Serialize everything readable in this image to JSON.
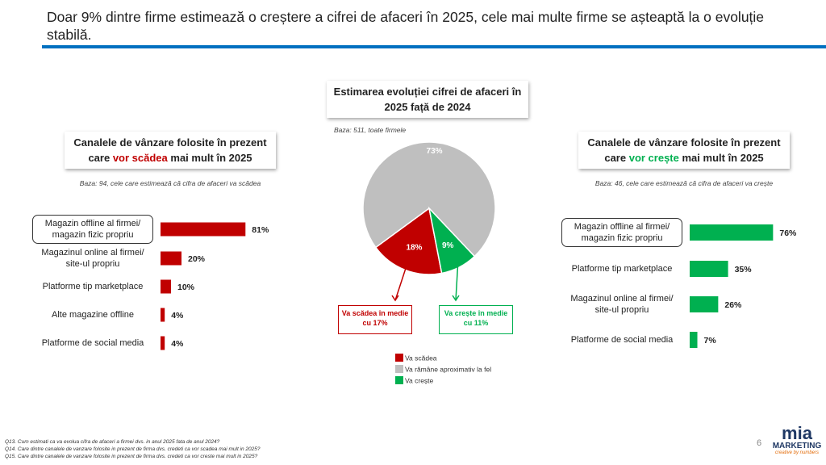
{
  "slide": {
    "title": "Doar 9% dintre firme estimează o creștere a cifrei de afaceri în 2025, cele mai multe firme se așteaptă la o evoluție stabilă.",
    "footnotes": [
      "Q13. Cum estimati ca va evolua cifra de afaceri a firmei dvs. in anul 2025 fata de anul 2024?",
      "Q14. Care dintre canalele de vanzare folosite in prezent de firma dvs. credeti ca vor scadea mai mult in 2025?",
      "Q15. Care dintre canalele de vanzare folosite in prezent de firma dvs. credeti ca vor creste mai mult in 2025?"
    ],
    "page_number": "6",
    "logo": {
      "name": "mia",
      "word": "MARKETING",
      "tagline": "creative by numbers"
    }
  },
  "chart_data": [
    {
      "type": "bar",
      "title": [
        "Canalele de vânzare folosite în prezent care",
        "vor scădea",
        "mai mult în 2025"
      ],
      "base": "Baza: 94, cele care estimează că cifra de afaceri va scădea",
      "categories": [
        "Magazin offline al firmei/ magazin fizic propriu",
        "Magazinul online al firmei/ site-ul propriu",
        "Platforme tip marketplace",
        "Alte magazine offline",
        "Platforme de social media"
      ],
      "values": [
        81,
        20,
        10,
        4,
        4
      ],
      "value_labels": [
        "81%",
        "20%",
        "10%",
        "4%",
        "4%"
      ],
      "color": "#c00000"
    },
    {
      "type": "pie",
      "title": "Estimarea evoluției cifrei de afaceri în 2025 față de 2024",
      "base": "Baza: 511, toate firmele",
      "categories": [
        "Va scădea",
        "Va rămâne aproximativ la fel",
        "Va crește"
      ],
      "values": [
        18,
        73,
        9
      ],
      "value_labels": [
        "18%",
        "73%",
        "9%"
      ],
      "colors": [
        "#c00000",
        "#bfbfbf",
        "#00b050"
      ],
      "annotations": [
        "Va scădea în medie cu 17%",
        "Va crește în medie cu 11%"
      ]
    },
    {
      "type": "bar",
      "title": [
        "Canalele de vânzare folosite în prezent care",
        "vor crește",
        "mai mult în 2025"
      ],
      "base": "Baza: 46, cele care estimează că cifra de afaceri va crește",
      "categories": [
        "Magazin offline al firmei/ magazin fizic propriu",
        "Platforme tip marketplace",
        "Magazinul online al firmei/ site-ul propriu",
        "Platforme de social media"
      ],
      "values": [
        76,
        35,
        26,
        7
      ],
      "value_labels": [
        "76%",
        "35%",
        "26%",
        "7%"
      ],
      "color": "#00b050"
    }
  ]
}
